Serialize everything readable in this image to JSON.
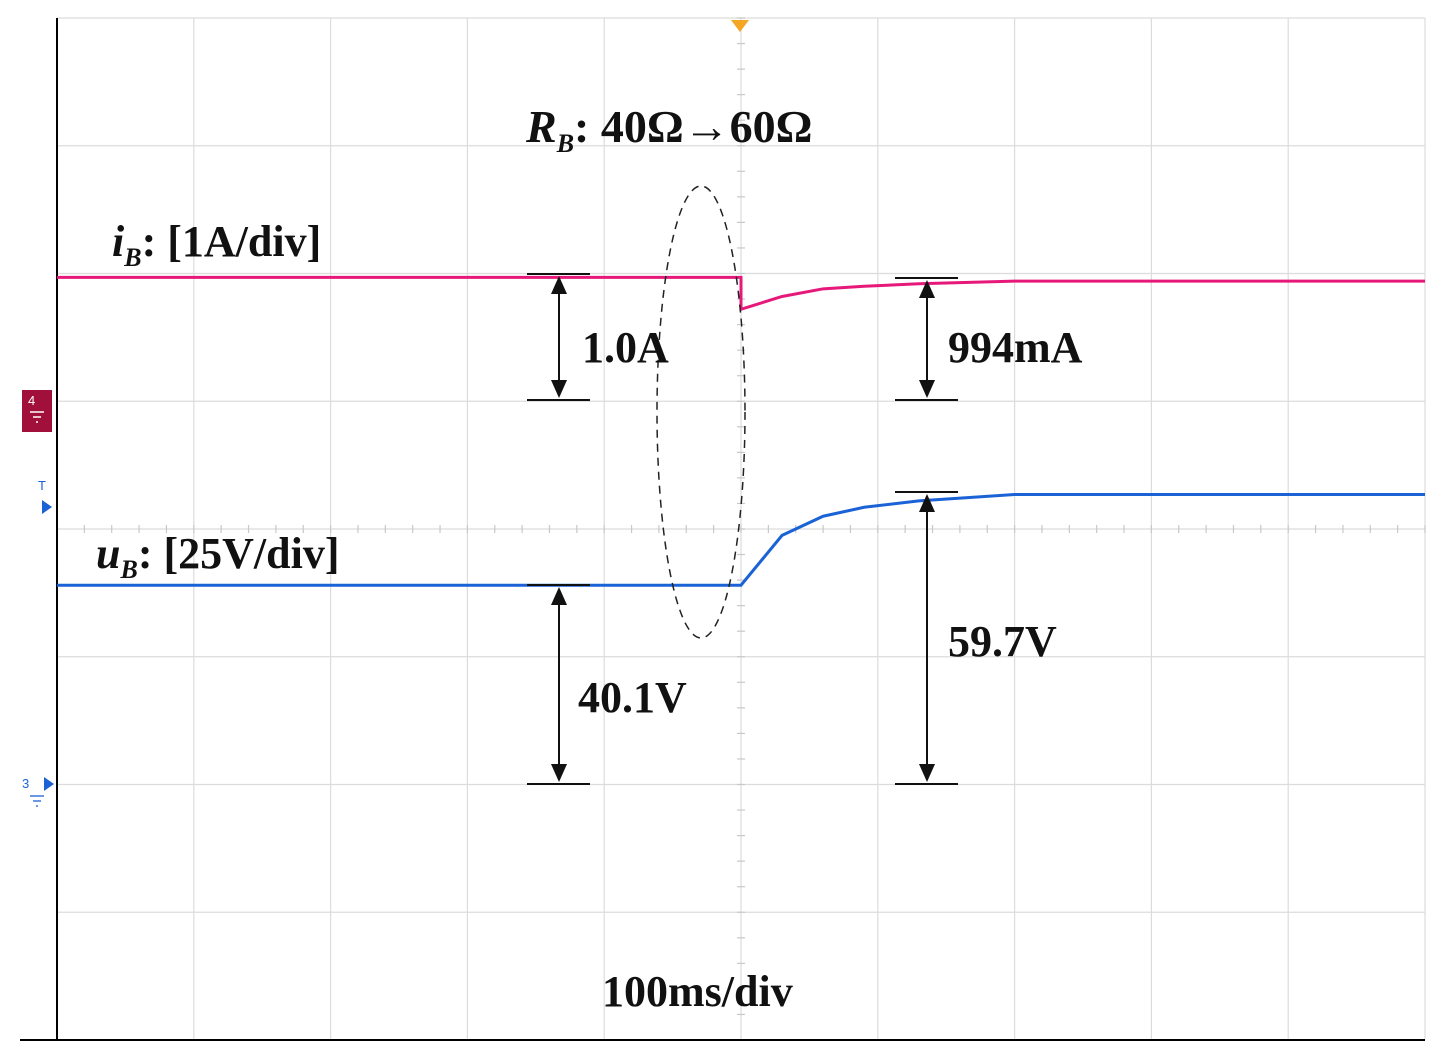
{
  "chart_data": {
    "type": "line",
    "title": "",
    "event_label": {
      "symbol": "R",
      "subscript": "B",
      "text": ": 40Ω→60Ω"
    },
    "time_scale": "100ms/div",
    "x": [
      -5,
      -0.3,
      0,
      0.3,
      0.6,
      0.9,
      1.3,
      2,
      3,
      5
    ],
    "xlim": [
      -5,
      5
    ],
    "ylim": [
      -4,
      4
    ],
    "grid": true,
    "series": [
      {
        "name": "iB",
        "label": {
          "symbol": "i",
          "subscript": "B",
          "scale": ": [1A/div]"
        },
        "color": "#e6197a",
        "values": [
          1.97,
          1.97,
          1.72,
          1.82,
          1.88,
          1.9,
          1.92,
          1.94,
          1.94,
          1.94
        ]
      },
      {
        "name": "uB",
        "label": {
          "symbol": "u",
          "subscript": "B",
          "scale": ": [25V/div]"
        },
        "color": "#1a62d6",
        "values": [
          -0.44,
          -0.44,
          -0.44,
          -0.05,
          0.1,
          0.17,
          0.22,
          0.27,
          0.27,
          0.27
        ]
      }
    ],
    "annotations": [
      "1.0A",
      "994mA",
      "40.1V",
      "59.7V"
    ],
    "markers": {
      "channel4": "4",
      "trigger": "T",
      "channel3": "3"
    }
  }
}
